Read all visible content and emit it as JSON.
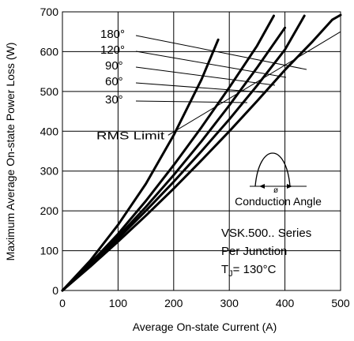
{
  "chart_data": {
    "type": "line",
    "xlabel": "Average On-state Current (A)",
    "ylabel": "Maximum Average On-state Power Loss (W)",
    "xlim": [
      0,
      500
    ],
    "ylim": [
      0,
      700
    ],
    "x_ticks": [
      "0",
      "100",
      "200",
      "300",
      "400",
      "500"
    ],
    "y_ticks": [
      "0",
      "100",
      "200",
      "300",
      "400",
      "500",
      "600",
      "700"
    ],
    "grid": true,
    "series": [
      {
        "name": "180°",
        "x": [
          0,
          50,
          100,
          150,
          200,
          250,
          300,
          350,
          400,
          450,
          485,
          500
        ],
        "y": [
          0,
          60,
          123,
          188,
          256,
          327,
          400,
          476,
          554,
          626,
          680,
          692
        ]
      },
      {
        "name": "120°",
        "x": [
          0,
          50,
          100,
          150,
          200,
          250,
          300,
          350,
          400,
          435
        ],
        "y": [
          0,
          63,
          130,
          200,
          273,
          350,
          430,
          515,
          605,
          690
        ]
      },
      {
        "name": "90°",
        "x": [
          0,
          50,
          100,
          150,
          200,
          250,
          300,
          350,
          400
        ],
        "y": [
          0,
          65,
          135,
          210,
          290,
          375,
          465,
          560,
          660
        ]
      },
      {
        "name": "60°",
        "x": [
          0,
          50,
          100,
          150,
          200,
          250,
          300,
          350,
          380
        ],
        "y": [
          0,
          68,
          142,
          225,
          315,
          410,
          510,
          615,
          690
        ]
      },
      {
        "name": "30°",
        "x": [
          0,
          50,
          100,
          150,
          200,
          250,
          280
        ],
        "y": [
          0,
          75,
          165,
          268,
          390,
          530,
          630
        ]
      }
    ],
    "curve_labels": [
      "180°",
      "120°",
      "90°",
      "60°",
      "30°"
    ],
    "rms_limit_label": "RMS Limit",
    "rms_limit_x": [
      190,
      500
    ],
    "rms_limit_y": [
      390,
      650
    ],
    "inset": {
      "label": "Conduction Angle",
      "symbol": "ø"
    },
    "annotation": {
      "line1": "VSK.500.. Series",
      "line2": "Per Junction",
      "line3_prefix": "T",
      "line3_sub": "J",
      "line3_rest": "= 130°C"
    }
  }
}
